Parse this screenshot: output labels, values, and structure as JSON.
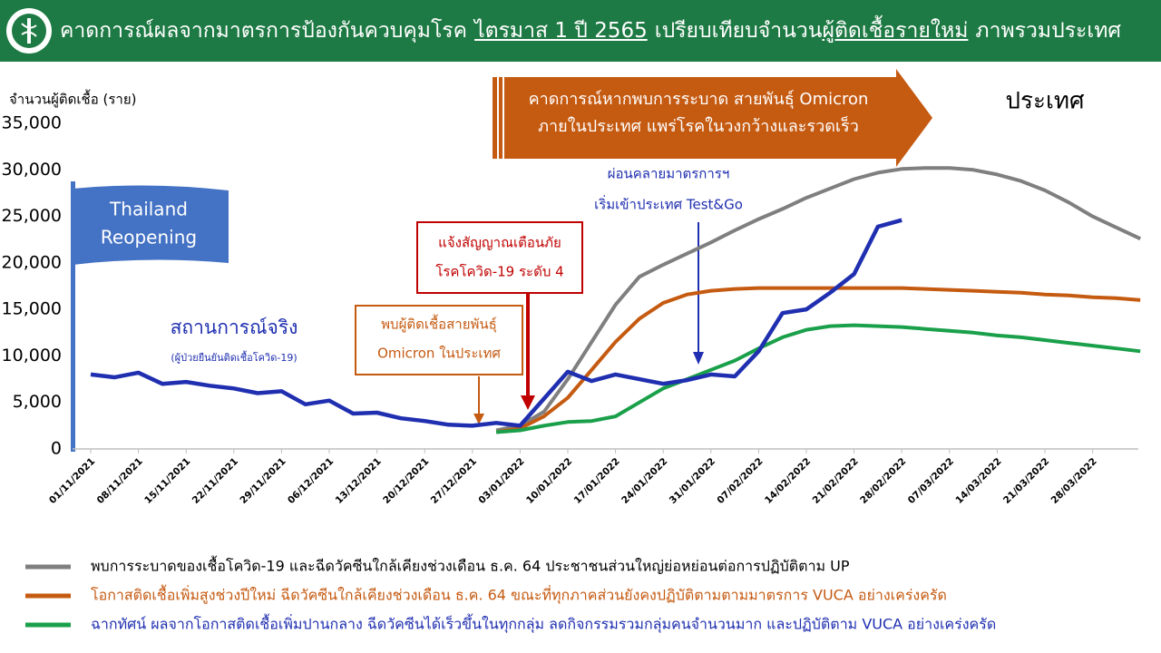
{
  "header": {
    "title_parts": [
      "คาดการณ์ผลจากมาตรการป้องกันควบคุมโรค",
      "ไตรมาส 1 ปี 2565",
      "เปรียบเทียบจำนวน",
      "ผู้ติดเชื้อรายใหม่",
      "ภาพรวมประเทศ"
    ]
  },
  "chart_data": {
    "type": "line",
    "y_label": "จำนวนผู้ติดเชื้อ (ราย)",
    "region": "ประเทศ",
    "ylim": [
      0,
      35000
    ],
    "yticks": [
      0,
      {
        "value": 5000,
        "label": "5,000"
      },
      {
        "value": 10000,
        "label": "10,000"
      },
      {
        "value": 15000,
        "label": "15,000"
      },
      {
        "value": 20000,
        "label": "20,000"
      },
      {
        "value": 25000,
        "label": "25,000"
      },
      {
        "value": 30000,
        "label": "30,000"
      },
      {
        "value": 35000,
        "label": "35,000"
      }
    ],
    "categories": [
      "01/11/2021",
      null,
      "08/11/2021",
      null,
      "15/11/2021",
      null,
      "22/11/2021",
      null,
      "29/11/2021",
      null,
      "06/12/2021",
      null,
      "13/12/2021",
      null,
      "20/12/2021",
      null,
      "27/12/2021",
      null,
      "03/01/2022",
      null,
      "10/01/2022",
      null,
      "17/01/2022",
      null,
      "24/01/2022",
      null,
      "31/01/2022",
      null,
      "07/02/2022",
      null,
      "14/02/2022",
      null,
      "21/02/2022",
      null,
      "28/02/2022",
      null,
      "07/03/2022",
      null,
      "14/03/2022",
      null,
      "21/03/2022",
      null,
      "28/03/2022",
      null,
      null
    ],
    "series": [
      {
        "name": "สถานการณ์จริง",
        "note": "(ผู้ป่วยยืนยันติดเชื้อโควิด-19)",
        "color": "#1f2fb0",
        "values": [
          8000,
          7700,
          8200,
          7000,
          7200,
          6800,
          6500,
          6000,
          6200,
          4800,
          5200,
          3800,
          3900,
          3300,
          3000,
          2600,
          2500,
          2800,
          2500,
          5400,
          8300,
          7300,
          8000,
          7500,
          7000,
          7400,
          8000,
          7800,
          10500,
          14600,
          15000,
          16800,
          18800,
          23900,
          24600,
          null,
          null,
          null,
          null,
          null,
          null,
          null,
          null,
          null,
          null
        ]
      },
      {
        "name": "พบการระบาดของเชื้อโควิด-19 และฉีดวัคซีนใกล้เคียงช่วงเดือน ธ.ค. 64 ประชาชนส่วนใหญ่ย่อหย่อนต่อการปฏิบัติตาม UP",
        "color": "#7f7f7f",
        "values": [
          null,
          null,
          null,
          null,
          null,
          null,
          null,
          null,
          null,
          null,
          null,
          null,
          null,
          null,
          null,
          null,
          null,
          2000,
          2500,
          4000,
          7500,
          11500,
          15500,
          18500,
          19800,
          21000,
          22200,
          23500,
          24700,
          25800,
          27000,
          28000,
          29000,
          29700,
          30100,
          30200,
          30200,
          30000,
          29500,
          28800,
          27800,
          26500,
          25000,
          23800,
          22600
        ]
      },
      {
        "name": "โอกาสติดเชื้อเพิ่มสูงช่วงปีใหม่ ฉีดวัคซีนใกล้เคียงช่วงเดือน ธ.ค. 64 ขณะที่ทุกภาคส่วนยังคงปฏิบัติตามตามมาตรการ VUCA อย่างเคร่งครัด",
        "color": "#c55a11",
        "values": [
          null,
          null,
          null,
          null,
          null,
          null,
          null,
          null,
          null,
          null,
          null,
          null,
          null,
          null,
          null,
          null,
          null,
          1800,
          2200,
          3500,
          5500,
          8500,
          11500,
          14000,
          15700,
          16600,
          17000,
          17200,
          17300,
          17300,
          17300,
          17300,
          17300,
          17300,
          17300,
          17200,
          17100,
          17000,
          16900,
          16800,
          16600,
          16500,
          16300,
          16200,
          16000
        ]
      },
      {
        "name": "ฉากทัศน์ ผลจากโอกาสติดเชื้อเพิ่มปานกลาง ฉีดวัคซีนได้เร็วขึ้นในทุกกลุ่ม ลดกิจกรรมรวมกลุ่มคนจำนวนมาก และปฏิบัติตาม VUCA อย่างเคร่งครัด",
        "color": "#1aa04a",
        "values": [
          null,
          null,
          null,
          null,
          null,
          null,
          null,
          null,
          null,
          null,
          null,
          null,
          null,
          null,
          null,
          null,
          null,
          1800,
          2000,
          2500,
          2900,
          3000,
          3500,
          5000,
          6500,
          7500,
          8500,
          9500,
          10800,
          12000,
          12800,
          13200,
          13300,
          13200,
          13100,
          12900,
          12700,
          12500,
          12200,
          12000,
          11700,
          11400,
          11100,
          10800,
          10500
        ]
      }
    ],
    "annotations": [
      [
        "คาดการณ์หากพบการระบาด สายพันธุ์ Omicron",
        "ภายในประเทศ แพร่โรคในวงกว้างและรวดเร็ว"
      ],
      [
        "Thailand",
        "Reopening"
      ],
      [
        "พบผู้ติดเชื้อสายพันธุ์",
        "Omicron ในประเทศ"
      ],
      [
        "แจ้งสัญญาณเตือนภัย",
        "โรคโควิด-19 ระดับ 4"
      ],
      [
        "ผ่อนคลายมาตรการฯ",
        "เริ่มเข้าประเทศ Test&Go"
      ]
    ]
  }
}
